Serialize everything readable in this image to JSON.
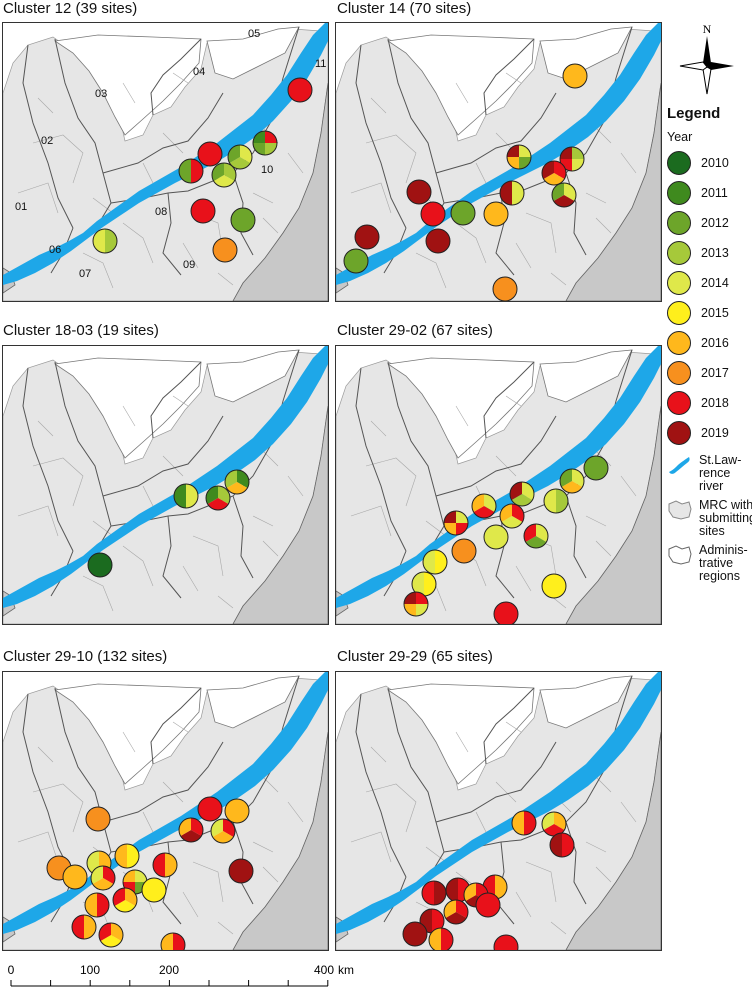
{
  "panels": [
    {
      "title": "Cluster 12 (39 sites)",
      "region_labels": [
        "05",
        "11",
        "04",
        "03",
        "02",
        "10",
        "01",
        "08",
        "06",
        "07",
        "09"
      ]
    },
    {
      "title": "Cluster 14 (70 sites)"
    },
    {
      "title": "Cluster 18-03 (19 sites)"
    },
    {
      "title": "Cluster 29-02 (67 sites)"
    },
    {
      "title": "Cluster 29-10 (132 sites)"
    },
    {
      "title": "Cluster 29-29 (65 sites)"
    }
  ],
  "compass": {
    "north": "N"
  },
  "legend": {
    "title": "Legend",
    "subtitle": "Year",
    "years": [
      {
        "label": "2010",
        "color": "#1b6b1f"
      },
      {
        "label": "2011",
        "color": "#3f8a1e"
      },
      {
        "label": "2012",
        "color": "#6da52a"
      },
      {
        "label": "2013",
        "color": "#a6c93a"
      },
      {
        "label": "2014",
        "color": "#dfe84a"
      },
      {
        "label": "2015",
        "color": "#ffef1c"
      },
      {
        "label": "2016",
        "color": "#ffb81c"
      },
      {
        "label": "2017",
        "color": "#f7901e"
      },
      {
        "label": "2018",
        "color": "#e8111a"
      },
      {
        "label": "2019",
        "color": "#a01212"
      }
    ],
    "symbols": [
      {
        "label": "St.Law-rence river",
        "icon": "river-icon"
      },
      {
        "label": "MRC with submitting sites",
        "icon": "mrc-icon"
      },
      {
        "label": "Adminis-trative regions",
        "icon": "region-icon"
      }
    ]
  },
  "scale": {
    "ticks": [
      "0",
      "100",
      "200",
      "400"
    ],
    "unit": "km"
  },
  "colors": {
    "river": "#1ea7e8",
    "mrc_fill": "#e6e6e6",
    "outside": "#c8c8c8",
    "border": "#555555"
  }
}
